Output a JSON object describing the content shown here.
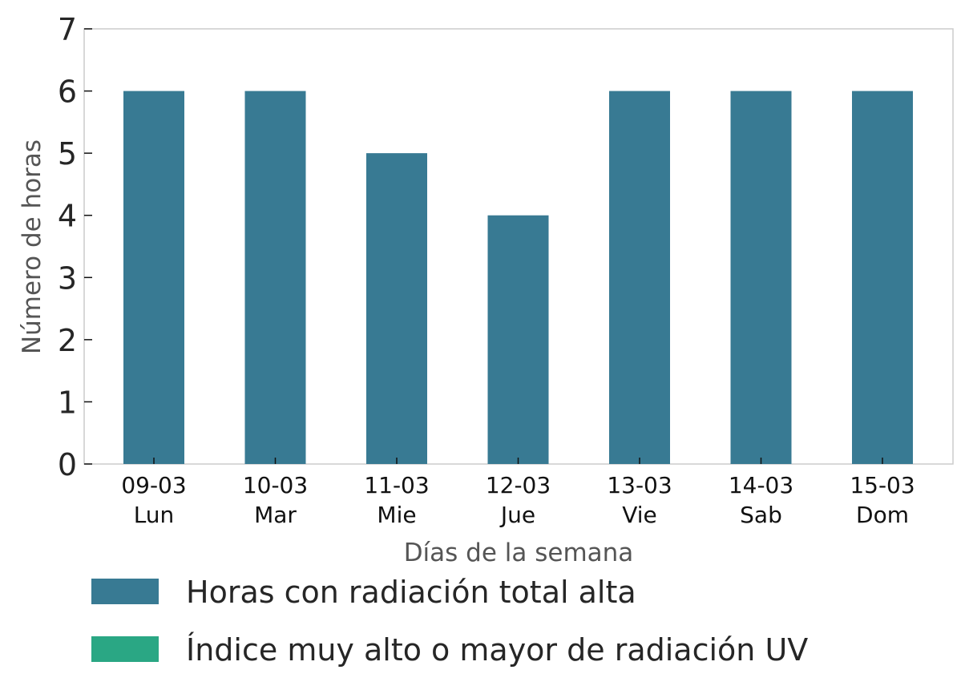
{
  "chart_data": {
    "type": "bar",
    "categories": [
      {
        "date": "09-03",
        "day": "Lun"
      },
      {
        "date": "10-03",
        "day": "Mar"
      },
      {
        "date": "11-03",
        "day": "Mie"
      },
      {
        "date": "12-03",
        "day": "Jue"
      },
      {
        "date": "13-03",
        "day": "Vie"
      },
      {
        "date": "14-03",
        "day": "Sab"
      },
      {
        "date": "15-03",
        "day": "Dom"
      }
    ],
    "series": [
      {
        "name": "Horas con radiación total alta",
        "color": "#387a93",
        "values": [
          6,
          6,
          5,
          4,
          6,
          6,
          6
        ]
      },
      {
        "name": "Índice muy alto o mayor de radiación UV",
        "color": "#2aa784",
        "values": [
          0,
          0,
          0,
          0,
          0,
          0,
          0
        ]
      }
    ],
    "xlabel": "Días de la semana",
    "ylabel": "Número de horas",
    "ylim": [
      0,
      7
    ],
    "yticks": [
      0,
      1,
      2,
      3,
      4,
      5,
      6,
      7
    ],
    "grid": false,
    "legend_position": "bottom-left"
  }
}
